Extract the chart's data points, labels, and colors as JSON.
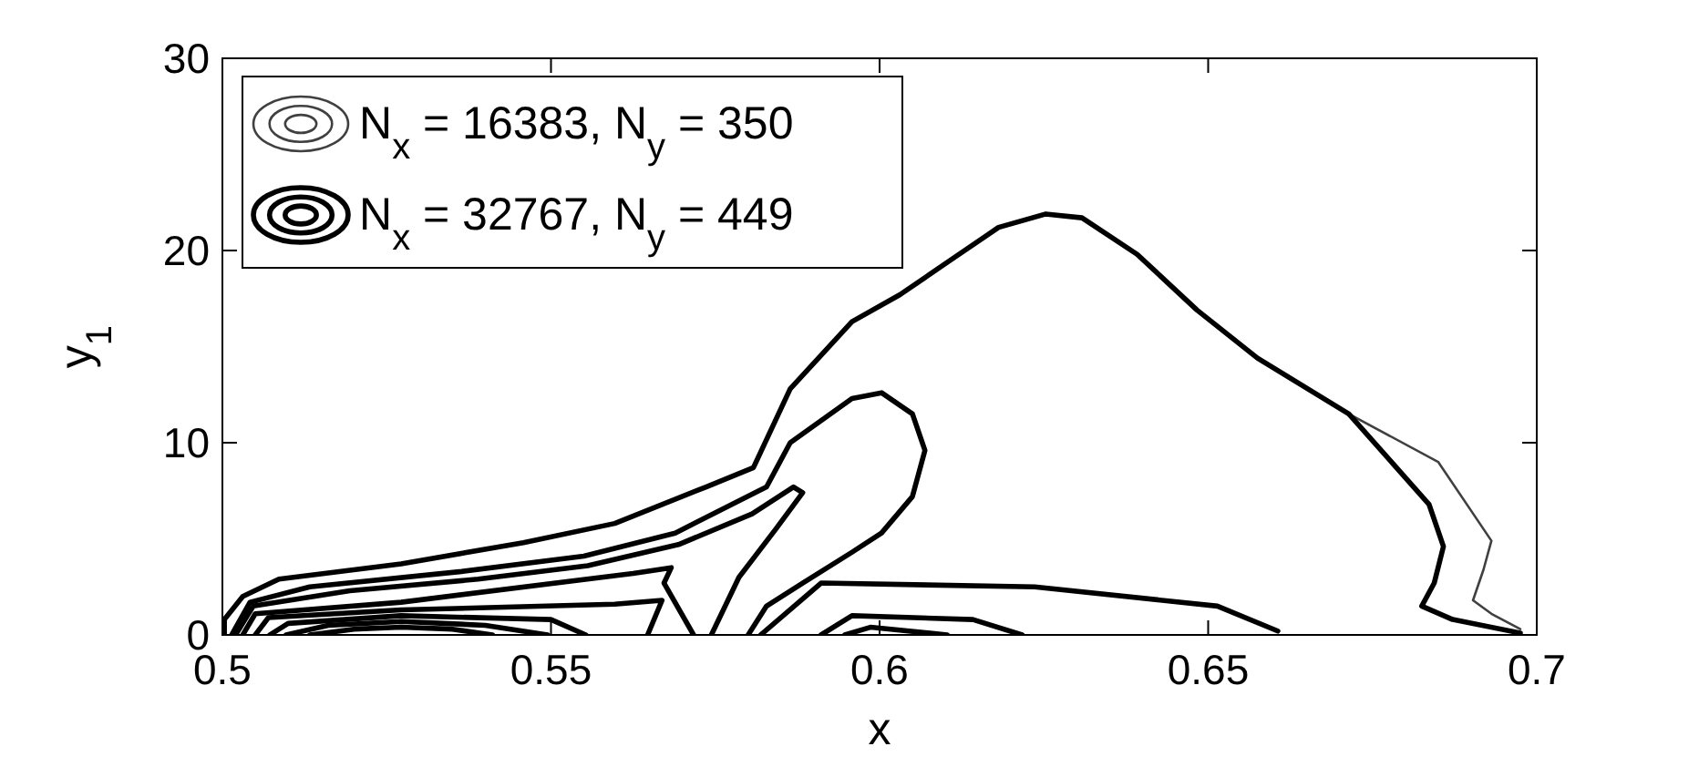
{
  "chart_data": {
    "type": "line",
    "xlabel": "x",
    "ylabel": "y$_{1}$",
    "xlim": [
      0.5,
      0.7
    ],
    "ylim": [
      0,
      30
    ],
    "xticks": [
      0.5,
      0.55,
      0.6,
      0.65,
      0.7
    ],
    "yticks": [
      0,
      10,
      20,
      30
    ],
    "legend": "top left",
    "grid": false,
    "series": [
      {
        "name": "N$_{x}$ = 16383, N$_{y}$ = 350",
        "color": "#404040",
        "x": [
          0.5003,
          0.5003,
          0.5031,
          0.5086,
          0.5272,
          0.5458,
          0.5597,
          0.5736,
          0.5808,
          0.5864,
          0.5958,
          0.6031,
          0.6108,
          0.6181,
          0.6253,
          0.6308,
          0.6392,
          0.6483,
          0.6575,
          0.6714,
          0.685,
          0.6931,
          0.6919,
          0.6903,
          0.6931,
          0.6975
        ],
        "values": [
          0,
          0.8,
          2.0,
          2.9,
          3.7,
          4.8,
          5.8,
          7.7,
          8.7,
          12.8,
          16.3,
          17.7,
          19.5,
          21.2,
          21.9,
          21.7,
          19.8,
          16.9,
          14.4,
          11.5,
          9.0,
          4.9,
          3.4,
          1.8,
          1.1,
          0.3
        ]
      },
      {
        "name": "N$_{x}$ = 32767, N$_{y}$ = 449",
        "color": "#000000",
        "x": [
          0.5003,
          0.5003,
          0.5031,
          0.5086,
          0.5272,
          0.5458,
          0.5597,
          0.5736,
          0.5808,
          0.5864,
          0.5958,
          0.6031,
          0.6108,
          0.6181,
          0.6253,
          0.6308,
          0.6392,
          0.6483,
          0.6575,
          0.6714,
          0.6836,
          0.6858,
          0.6844,
          0.6825,
          0.6872,
          0.6975
        ],
        "values": [
          0,
          0.8,
          2.0,
          2.9,
          3.7,
          4.8,
          5.8,
          7.7,
          8.7,
          12.8,
          16.3,
          17.7,
          19.5,
          21.2,
          21.9,
          21.7,
          19.8,
          16.9,
          14.4,
          11.5,
          6.8,
          4.6,
          2.7,
          1.5,
          0.8,
          0.1
        ]
      },
      {
        "color": "#000000",
        "x": [
          0.5014,
          0.5042,
          0.5133,
          0.5364,
          0.555,
          0.5689,
          0.5828,
          0.5864,
          0.5958,
          0.6003,
          0.605,
          0.6069,
          0.605,
          0.6003,
          0.5958,
          0.5883,
          0.5828,
          0.58
        ],
        "values": [
          0,
          1.7,
          2.5,
          3.3,
          4.1,
          5.3,
          7.7,
          10.0,
          12.3,
          12.6,
          11.5,
          9.6,
          7.2,
          5.3,
          4.3,
          2.7,
          1.5,
          0
        ]
      },
      {
        "color": "#000000",
        "x": [
          0.502,
          0.5047,
          0.5194,
          0.5389,
          0.5556,
          0.5694,
          0.5806,
          0.5869,
          0.5883,
          0.5842,
          0.5786,
          0.5744
        ],
        "values": [
          0,
          1.5,
          2.3,
          2.9,
          3.6,
          4.7,
          6.3,
          7.7,
          7.4,
          5.5,
          3.0,
          0
        ]
      },
      {
        "color": "#000000",
        "x": [
          0.5031,
          0.505,
          0.5272,
          0.5625,
          0.5683,
          0.5672,
          0.5717
        ],
        "values": [
          0,
          1.1,
          1.7,
          3.2,
          3.5,
          2.7,
          0
        ]
      },
      {
        "color": "#000000",
        "x": [
          0.505,
          0.507,
          0.5272,
          0.5597,
          0.5669,
          0.5647
        ],
        "values": [
          0,
          0.9,
          1.3,
          1.6,
          1.8,
          0
        ]
      },
      {
        "color": "#000000",
        "x": [
          0.5072,
          0.51,
          0.5272,
          0.55,
          0.5553
        ],
        "values": [
          0,
          0.6,
          1.0,
          0.8,
          0
        ]
      },
      {
        "color": "#000000",
        "x": [
          0.5097,
          0.5161,
          0.5272,
          0.54,
          0.5495
        ],
        "values": [
          0,
          0.5,
          0.7,
          0.5,
          0
        ]
      },
      {
        "color": "#000000",
        "x": [
          0.5133,
          0.52,
          0.5272,
          0.535,
          0.5411
        ],
        "values": [
          0,
          0.3,
          0.4,
          0.3,
          0
        ]
      },
      {
        "color": "#000000",
        "x": [
          0.5819,
          0.5911,
          0.6236,
          0.6514,
          0.6606
        ],
        "values": [
          0,
          2.7,
          2.5,
          1.5,
          0.2
        ]
      },
      {
        "color": "#000000",
        "x": [
          0.5911,
          0.5958,
          0.6142,
          0.6217
        ],
        "values": [
          0,
          1.0,
          0.8,
          0
        ]
      },
      {
        "color": "#000000",
        "x": [
          0.5947,
          0.5986,
          0.6103
        ],
        "values": [
          0,
          0.4,
          0
        ]
      }
    ]
  }
}
